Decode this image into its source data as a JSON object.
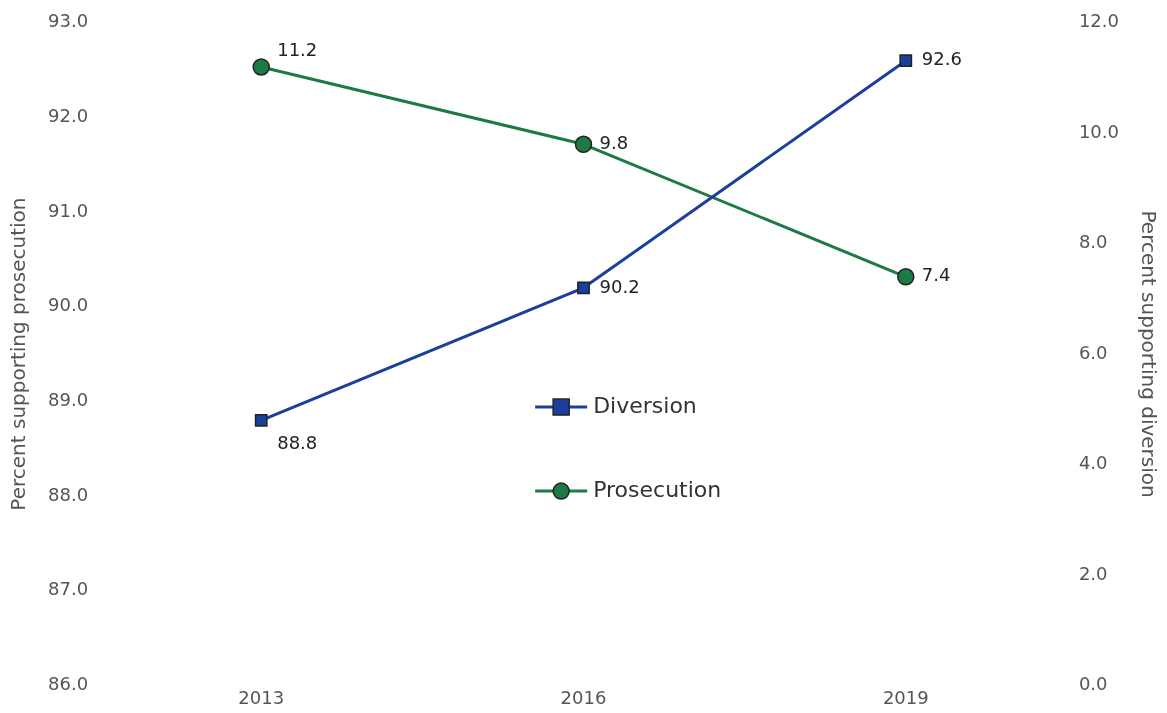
{
  "chart_data": {
    "type": "line",
    "categories": [
      "2013",
      "2016",
      "2019"
    ],
    "ylabel": "Percent supporting prosecution",
    "y2label": "Percent supporting diversion",
    "series": [
      {
        "name": "Diversion",
        "color": "#1b3f9c",
        "values": [
          88.8,
          90.2,
          92.6
        ],
        "marker": "square"
      },
      {
        "name": "Prosecution",
        "color": "#1d7a45",
        "values": [
          11.2,
          9.8,
          7.4
        ],
        "axis": "y2",
        "marker": "circle"
      }
    ],
    "ylim": [
      86,
      93
    ],
    "yticks": [
      {
        "value": 86,
        "label": "86.0"
      },
      {
        "value": 87,
        "label": "87.0"
      },
      {
        "value": 88,
        "label": "88.0"
      },
      {
        "value": 89,
        "label": "89.0"
      },
      {
        "value": 90,
        "label": "90.0"
      },
      {
        "value": 91,
        "label": "91.0"
      },
      {
        "value": 92,
        "label": "92.0"
      },
      {
        "value": 93,
        "label": "93.0"
      }
    ],
    "y2lim": [
      0,
      12
    ],
    "y2ticks": [
      {
        "value": 0,
        "label": "0.0"
      },
      {
        "value": 2,
        "label": "2.0"
      },
      {
        "value": 4,
        "label": "4.0"
      },
      {
        "value": 6,
        "label": "6.0"
      },
      {
        "value": 8,
        "label": "8.0"
      },
      {
        "value": 10,
        "label": "10.0"
      },
      {
        "value": 12,
        "label": "12.0"
      }
    ],
    "grid": false,
    "legend": "center",
    "data_labels": true,
    "line_style": "solid"
  }
}
